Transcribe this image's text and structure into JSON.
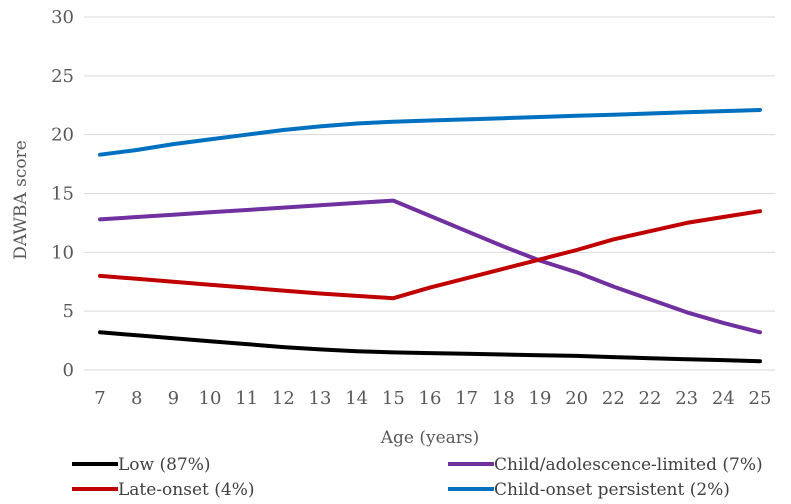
{
  "chart_data": {
    "type": "line",
    "xlabel": "Age (years)",
    "ylabel": "DAWBA score",
    "ylim": [
      0,
      30
    ],
    "yticks": [
      0,
      5,
      10,
      15,
      20,
      25,
      30
    ],
    "grid": true,
    "legend_position": "bottom",
    "x": [
      "7",
      "8",
      "9",
      "10",
      "11",
      "12",
      "13",
      "14",
      "15",
      "16",
      "17",
      "18",
      "19",
      "20",
      "22",
      "22",
      "23",
      "24",
      "25"
    ],
    "series": [
      {
        "name": "Low (87%)",
        "color": "#000000",
        "values": [
          3.2,
          2.95,
          2.7,
          2.45,
          2.2,
          1.95,
          1.75,
          1.6,
          1.5,
          1.44,
          1.38,
          1.32,
          1.26,
          1.2,
          1.1,
          1.0,
          0.92,
          0.84,
          0.75
        ]
      },
      {
        "name": "Child/adolescence-limited (7%)",
        "color": "#7030a0",
        "values": [
          12.8,
          13.0,
          13.2,
          13.4,
          13.6,
          13.8,
          14.0,
          14.2,
          14.4,
          13.1,
          11.8,
          10.5,
          9.3,
          8.3,
          7.1,
          6.0,
          4.9,
          4.0,
          3.2
        ]
      },
      {
        "name": "Late-onset (4%)",
        "color": "#c00000",
        "values": [
          8.0,
          7.75,
          7.5,
          7.25,
          7.0,
          6.75,
          6.5,
          6.3,
          6.1,
          7.0,
          7.8,
          8.6,
          9.4,
          10.2,
          11.1,
          11.8,
          12.5,
          13.0,
          13.5
        ]
      },
      {
        "name": "Child-onset persistent (2%)",
        "color": "#0070c0",
        "values": [
          18.3,
          18.7,
          19.2,
          19.6,
          20.0,
          20.4,
          20.7,
          20.95,
          21.1,
          21.2,
          21.3,
          21.4,
          21.5,
          21.6,
          21.7,
          21.8,
          21.9,
          22.0,
          22.1
        ]
      }
    ]
  }
}
